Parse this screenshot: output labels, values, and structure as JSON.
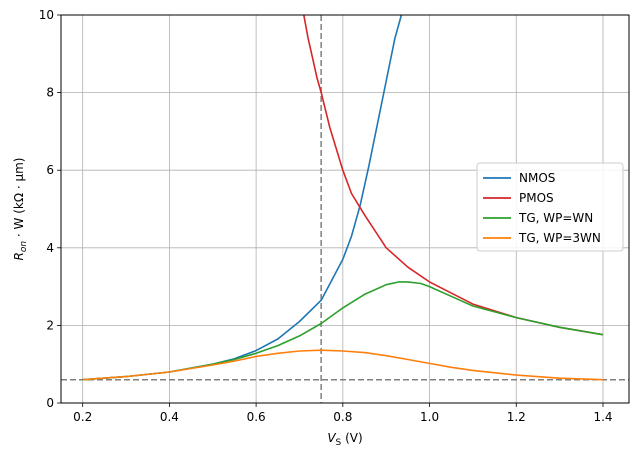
{
  "chart_data": {
    "type": "line",
    "title": "",
    "xlabel": {
      "main": "V",
      "sub": "S",
      "unit": " (V)"
    },
    "ylabel": {
      "pre": "R",
      "sub": "on",
      "mid": " · W",
      "unit": " (kΩ · μm)"
    },
    "xlim": [
      0.15,
      1.46
    ],
    "ylim": [
      0,
      10
    ],
    "xticks": [
      0.2,
      0.4,
      0.6,
      0.8,
      1.0,
      1.2,
      1.4
    ],
    "xtick_labels": [
      "0.2",
      "0.4",
      "0.6",
      "0.8",
      "1.0",
      "1.2",
      "1.4"
    ],
    "yticks": [
      0,
      2,
      4,
      6,
      8,
      10
    ],
    "ytick_labels": [
      "0",
      "2",
      "4",
      "6",
      "8",
      "10"
    ],
    "grid": true,
    "legend_position": "center-right",
    "reference_lines": {
      "vertical_x": 0.75,
      "horizontal_y": 0.6,
      "color": "#7f7f7f"
    },
    "series": [
      {
        "name": "NMOS",
        "color": "#1f77b4",
        "x": [
          0.2,
          0.3,
          0.4,
          0.5,
          0.55,
          0.6,
          0.65,
          0.7,
          0.75,
          0.8,
          0.82,
          0.84,
          0.86,
          0.88,
          0.9,
          0.92,
          0.935
        ],
        "y": [
          0.6,
          0.68,
          0.8,
          1.0,
          1.14,
          1.35,
          1.65,
          2.1,
          2.65,
          3.7,
          4.3,
          5.1,
          6.1,
          7.2,
          8.3,
          9.4,
          10.0
        ]
      },
      {
        "name": "PMOS",
        "color": "#d62728",
        "x": [
          0.71,
          0.72,
          0.73,
          0.74,
          0.75,
          0.77,
          0.8,
          0.82,
          0.85,
          0.9,
          0.95,
          1.0,
          1.1,
          1.2,
          1.3,
          1.4
        ],
        "y": [
          10.0,
          9.4,
          8.9,
          8.4,
          8.0,
          7.1,
          6.0,
          5.4,
          4.85,
          4.0,
          3.5,
          3.12,
          2.55,
          2.2,
          1.95,
          1.76
        ]
      },
      {
        "name": "TG, WP=WN",
        "color": "#2ca02c",
        "x": [
          0.2,
          0.3,
          0.4,
          0.5,
          0.55,
          0.6,
          0.65,
          0.7,
          0.75,
          0.8,
          0.85,
          0.9,
          0.93,
          0.95,
          0.98,
          1.0,
          1.05,
          1.1,
          1.2,
          1.3,
          1.4
        ],
        "y": [
          0.6,
          0.68,
          0.8,
          1.0,
          1.12,
          1.28,
          1.48,
          1.73,
          2.05,
          2.45,
          2.8,
          3.05,
          3.12,
          3.12,
          3.08,
          3.0,
          2.75,
          2.5,
          2.2,
          1.95,
          1.76
        ]
      },
      {
        "name": "TG, WP=3WN",
        "color": "#ff7f0e",
        "x": [
          0.2,
          0.3,
          0.4,
          0.5,
          0.55,
          0.6,
          0.65,
          0.7,
          0.75,
          0.8,
          0.85,
          0.9,
          0.95,
          1.0,
          1.05,
          1.1,
          1.2,
          1.3,
          1.4
        ],
        "y": [
          0.6,
          0.68,
          0.8,
          0.98,
          1.08,
          1.2,
          1.28,
          1.34,
          1.36,
          1.34,
          1.3,
          1.22,
          1.12,
          1.02,
          0.92,
          0.84,
          0.72,
          0.64,
          0.6
        ]
      }
    ]
  }
}
